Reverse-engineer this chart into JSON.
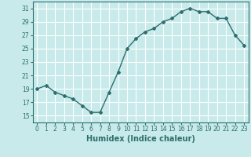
{
  "x": [
    0,
    1,
    2,
    3,
    4,
    5,
    6,
    7,
    8,
    9,
    10,
    11,
    12,
    13,
    14,
    15,
    16,
    17,
    18,
    19,
    20,
    21,
    22,
    23
  ],
  "y": [
    19,
    19.5,
    18.5,
    18,
    17.5,
    16.5,
    15.5,
    15.5,
    18.5,
    21.5,
    25,
    26.5,
    27.5,
    28,
    29,
    29.5,
    30.5,
    31,
    30.5,
    30.5,
    29.5,
    29.5,
    27,
    25.5
  ],
  "line_color": "#2d6e6e",
  "marker": "D",
  "marker_size": 2,
  "bg_color": "#c8eaea",
  "grid_color": "#ffffff",
  "tick_color": "#2d6e6e",
  "xlabel": "Humidex (Indice chaleur)",
  "xlabel_fontsize": 7,
  "xlabel_fontweight": "bold",
  "yticks": [
    15,
    17,
    19,
    21,
    23,
    25,
    27,
    29,
    31
  ],
  "xticks": [
    0,
    1,
    2,
    3,
    4,
    5,
    6,
    7,
    8,
    9,
    10,
    11,
    12,
    13,
    14,
    15,
    16,
    17,
    18,
    19,
    20,
    21,
    22,
    23
  ],
  "xlim": [
    -0.5,
    23.5
  ],
  "ylim": [
    14,
    32
  ],
  "tick_fontsize": 5.5,
  "linewidth": 1.0
}
